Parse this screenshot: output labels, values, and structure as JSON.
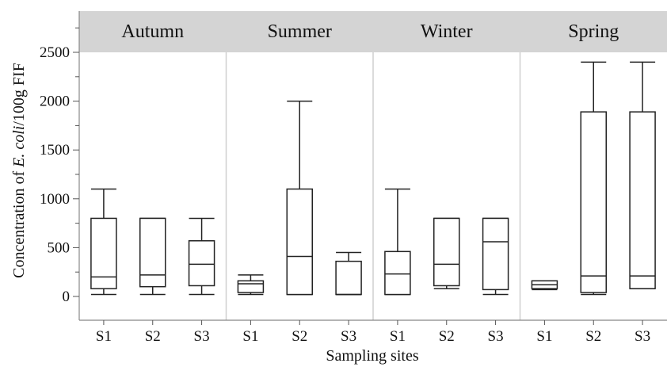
{
  "chart_data": {
    "type": "boxplot",
    "xlabel": "Sampling sites",
    "ylabel_prefix": "Concentration of ",
    "ylabel_italic": "E. coli",
    "ylabel_suffix": "/100g FIF",
    "ylim": [
      -250,
      2750
    ],
    "yticks": [
      0,
      500,
      1000,
      1500,
      2000,
      2500
    ],
    "categories": [
      "S1",
      "S2",
      "S3"
    ],
    "panels": [
      {
        "name": "Autumn",
        "boxes": [
          {
            "site": "S1",
            "min": 20,
            "q1": 80,
            "median": 200,
            "q3": 800,
            "max": 1100
          },
          {
            "site": "S2",
            "min": 20,
            "q1": 100,
            "median": 220,
            "q3": 800,
            "max": 800
          },
          {
            "site": "S3",
            "min": 20,
            "q1": 110,
            "median": 330,
            "q3": 570,
            "max": 800
          }
        ]
      },
      {
        "name": "Summer",
        "boxes": [
          {
            "site": "S1",
            "min": 20,
            "q1": 40,
            "median": 130,
            "q3": 160,
            "max": 220
          },
          {
            "site": "S2",
            "min": 20,
            "q1": 20,
            "median": 410,
            "q3": 1100,
            "max": 2000
          },
          {
            "site": "S3",
            "min": 20,
            "q1": 20,
            "median": 20,
            "q3": 360,
            "max": 450
          }
        ]
      },
      {
        "name": "Winter",
        "boxes": [
          {
            "site": "S1",
            "min": 20,
            "q1": 20,
            "median": 230,
            "q3": 460,
            "max": 1100
          },
          {
            "site": "S2",
            "min": 80,
            "q1": 110,
            "median": 330,
            "q3": 800,
            "max": 800
          },
          {
            "site": "S3",
            "min": 20,
            "q1": 70,
            "median": 560,
            "q3": 800,
            "max": 800
          }
        ]
      },
      {
        "name": "Spring",
        "boxes": [
          {
            "site": "S1",
            "min": 70,
            "q1": 80,
            "median": 120,
            "q3": 160,
            "max": 160
          },
          {
            "site": "S2",
            "min": 20,
            "q1": 40,
            "median": 210,
            "q3": 1890,
            "max": 2400
          },
          {
            "site": "S3",
            "min": 80,
            "q1": 80,
            "median": 210,
            "q3": 1890,
            "max": 2400
          }
        ]
      }
    ],
    "grid": false,
    "legend": "none"
  }
}
